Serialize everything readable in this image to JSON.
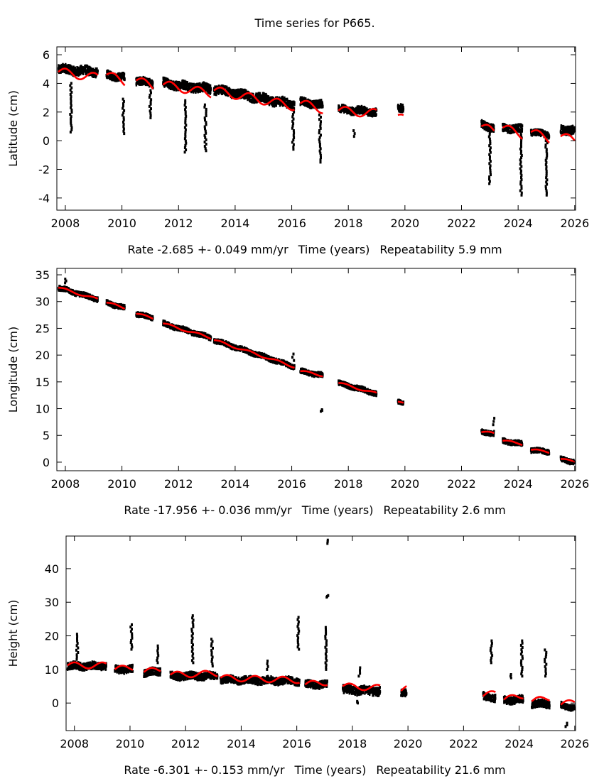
{
  "title": "Time series for P665.",
  "chart_data": [
    {
      "type": "scatter",
      "ylabel": "Latitude (cm)",
      "xlabel": "Time (years)",
      "rate": "Rate -2.685 +- 0.049 mm/yr",
      "repeatability": "Repeatability 5.9 mm",
      "xlim": [
        2007.7,
        2026.03
      ],
      "ylim": [
        -4.85,
        6.55
      ],
      "xticks": [
        2008,
        2010,
        2012,
        2014,
        2016,
        2018,
        2020,
        2022,
        2024,
        2026
      ],
      "yticks": [
        -4,
        -2,
        0,
        2,
        4,
        6
      ],
      "data_color": "#000000",
      "model_color": "#ff0000",
      "model_amplitude": 0.3,
      "segments": [
        [
          2007.75,
          2009.15,
          5.0,
          4.8,
          0.3
        ],
        [
          2009.45,
          2010.1,
          4.6,
          4.4,
          0.25
        ],
        [
          2010.5,
          2011.1,
          4.2,
          4.0,
          0.25
        ],
        [
          2011.45,
          2013.15,
          4.0,
          3.6,
          0.3
        ],
        [
          2013.25,
          2016.1,
          3.6,
          2.5,
          0.3
        ],
        [
          2016.3,
          2017.1,
          2.7,
          2.5,
          0.25
        ],
        [
          2017.65,
          2019.0,
          2.2,
          2.0,
          0.25
        ],
        [
          2019.75,
          2019.95,
          2.2,
          2.2,
          0.25
        ],
        [
          2022.7,
          2023.15,
          1.1,
          0.9,
          0.25
        ],
        [
          2023.45,
          2024.15,
          0.9,
          0.8,
          0.25
        ],
        [
          2024.45,
          2025.1,
          0.6,
          0.4,
          0.2
        ],
        [
          2025.5,
          2026.0,
          0.7,
          0.8,
          0.3
        ]
      ],
      "model": [
        [
          2007.75,
          2009.15,
          4.8,
          4.4
        ],
        [
          2009.45,
          2010.1,
          4.6,
          4.1
        ],
        [
          2010.5,
          2011.1,
          4.2,
          3.8
        ],
        [
          2011.45,
          2013.15,
          3.9,
          3.3
        ],
        [
          2013.25,
          2016.1,
          3.5,
          2.4
        ],
        [
          2016.3,
          2017.1,
          2.6,
          2.2
        ],
        [
          2017.65,
          2019.0,
          2.1,
          1.9
        ],
        [
          2019.75,
          2019.95,
          1.8,
          1.5
        ],
        [
          2022.7,
          2023.15,
          1.0,
          0.6
        ],
        [
          2023.45,
          2024.15,
          0.9,
          0.4
        ],
        [
          2024.45,
          2025.1,
          0.6,
          0.1
        ],
        [
          2025.5,
          2026.0,
          0.3,
          0.0
        ]
      ],
      "outliers": [
        [
          2008.2,
          0.6,
          4.0
        ],
        [
          2010.05,
          0.5,
          2.9
        ],
        [
          2011.0,
          1.6,
          3.5
        ],
        [
          2012.25,
          -0.8,
          2.8
        ],
        [
          2012.95,
          -0.7,
          2.5
        ],
        [
          2016.05,
          -0.6,
          2.0
        ],
        [
          2017.0,
          -1.5,
          1.8
        ],
        [
          2018.2,
          0.3,
          0.7
        ],
        [
          2023.0,
          -3.0,
          0.9
        ],
        [
          2024.1,
          -3.8,
          0.5
        ],
        [
          2025.0,
          -3.8,
          0.0
        ]
      ]
    },
    {
      "type": "scatter",
      "ylabel": "Longitude (cm)",
      "xlabel": "Time (years)",
      "rate": "Rate -17.956 +- 0.036 mm/yr",
      "repeatability": "Repeatability 2.6 mm",
      "xlim": [
        2007.7,
        2026.03
      ],
      "ylim": [
        -1.6,
        36.2
      ],
      "xticks": [
        2008,
        2010,
        2012,
        2014,
        2016,
        2018,
        2020,
        2022,
        2024,
        2026
      ],
      "yticks": [
        0,
        5,
        10,
        15,
        20,
        25,
        30,
        35
      ],
      "data_color": "#000000",
      "model_color": "#ff0000",
      "model_amplitude": 0.2,
      "segments": [
        [
          2007.75,
          2009.15,
          32.6,
          30.4,
          0.4
        ],
        [
          2009.45,
          2010.1,
          29.8,
          28.8,
          0.4
        ],
        [
          2010.5,
          2011.1,
          27.7,
          26.9,
          0.4
        ],
        [
          2011.45,
          2013.15,
          25.9,
          23.2,
          0.4
        ],
        [
          2013.25,
          2016.1,
          22.8,
          17.8,
          0.4
        ],
        [
          2016.3,
          2017.1,
          17.0,
          16.2,
          0.4
        ],
        [
          2017.65,
          2019.0,
          14.8,
          12.8,
          0.4
        ],
        [
          2019.75,
          2019.95,
          11.3,
          10.9,
          0.3
        ],
        [
          2022.7,
          2023.15,
          5.6,
          5.4,
          0.4
        ],
        [
          2023.45,
          2024.15,
          4.0,
          3.4,
          0.4
        ],
        [
          2024.45,
          2025.1,
          2.3,
          1.9,
          0.4
        ],
        [
          2025.5,
          2026.0,
          0.6,
          0.0,
          0.4
        ]
      ],
      "model": [
        [
          2007.75,
          2009.15,
          32.6,
          30.4
        ],
        [
          2009.45,
          2010.1,
          29.8,
          28.8
        ],
        [
          2010.5,
          2011.1,
          27.7,
          26.9
        ],
        [
          2011.45,
          2013.15,
          25.9,
          23.2
        ],
        [
          2013.25,
          2016.1,
          22.8,
          17.8
        ],
        [
          2016.3,
          2017.1,
          17.0,
          16.2
        ],
        [
          2017.65,
          2019.0,
          14.8,
          12.8
        ],
        [
          2019.75,
          2019.95,
          11.3,
          10.9
        ],
        [
          2022.7,
          2023.15,
          5.6,
          5.4
        ],
        [
          2023.45,
          2024.15,
          4.0,
          3.4
        ],
        [
          2024.45,
          2025.1,
          2.3,
          1.9
        ],
        [
          2025.5,
          2026.0,
          0.6,
          0.0
        ]
      ],
      "outliers": [
        [
          2008.0,
          33.5,
          34.2
        ],
        [
          2016.05,
          19.0,
          20.2
        ],
        [
          2017.05,
          9.5,
          9.8
        ],
        [
          2023.15,
          7.0,
          8.2
        ]
      ]
    },
    {
      "type": "scatter",
      "ylabel": "Height (cm)",
      "xlabel": "Time (years)",
      "rate": "Rate -6.301 +- 0.153 mm/yr",
      "repeatability": "Repeatability 21.6 mm",
      "xlim": [
        2007.7,
        2026.03
      ],
      "ylim": [
        -8.2,
        49.7
      ],
      "xticks": [
        2008,
        2010,
        2012,
        2014,
        2016,
        2018,
        2020,
        2022,
        2024,
        2026
      ],
      "yticks": [
        0,
        10,
        20,
        30,
        40
      ],
      "data_color": "#000000",
      "model_color": "#ff0000",
      "model_amplitude": 0.9,
      "segments": [
        [
          2007.75,
          2009.15,
          11,
          11,
          1.0
        ],
        [
          2009.45,
          2010.1,
          10,
          10,
          1.0
        ],
        [
          2010.5,
          2011.1,
          9,
          9.5,
          1.0
        ],
        [
          2011.45,
          2013.15,
          8,
          8,
          1.0
        ],
        [
          2013.25,
          2016.1,
          7,
          6.5,
          1.0
        ],
        [
          2016.3,
          2017.1,
          5.5,
          5.5,
          1.0
        ],
        [
          2017.65,
          2019.0,
          4,
          3.5,
          1.2
        ],
        [
          2019.75,
          2019.95,
          2.8,
          2.8,
          1.0
        ],
        [
          2022.7,
          2023.15,
          2,
          1.5,
          1.0
        ],
        [
          2023.45,
          2024.15,
          0.8,
          1.0,
          1.0
        ],
        [
          2024.45,
          2025.1,
          -0.2,
          -0.3,
          1.0
        ],
        [
          2025.5,
          2026.0,
          -0.7,
          -1.5,
          0.8
        ]
      ],
      "model": [
        [
          2007.75,
          2009.15,
          11.2,
          11.2
        ],
        [
          2009.45,
          2010.1,
          10.0,
          10.6
        ],
        [
          2010.5,
          2011.1,
          9.2,
          10.0
        ],
        [
          2011.45,
          2013.15,
          8.4,
          8.8
        ],
        [
          2013.25,
          2016.1,
          7.5,
          6.8
        ],
        [
          2016.3,
          2017.1,
          5.5,
          6.2
        ],
        [
          2017.65,
          2019.0,
          5.0,
          4.5
        ],
        [
          2019.75,
          2019.95,
          3.6,
          4.2
        ],
        [
          2022.7,
          2023.15,
          2.0,
          3.0
        ],
        [
          2023.45,
          2024.15,
          1.0,
          2.2
        ],
        [
          2024.45,
          2025.1,
          0.5,
          1.5
        ],
        [
          2025.5,
          2026.0,
          -0.5,
          0.3
        ]
      ],
      "outliers": [
        [
          2008.1,
          13,
          20.5
        ],
        [
          2010.05,
          16,
          23.3
        ],
        [
          2011.0,
          12,
          17
        ],
        [
          2012.25,
          12,
          26
        ],
        [
          2012.95,
          11,
          19
        ],
        [
          2014.95,
          10,
          12.5
        ],
        [
          2016.05,
          16,
          25.5
        ],
        [
          2017.05,
          10,
          22.5
        ],
        [
          2017.1,
          31.5,
          32
        ],
        [
          2017.1,
          47.5,
          48.5
        ],
        [
          2018.25,
          8,
          10.5
        ],
        [
          2018.2,
          0,
          0.5
        ],
        [
          2023.0,
          12,
          18.5
        ],
        [
          2023.7,
          7.5,
          8.5
        ],
        [
          2024.1,
          8,
          18.5
        ],
        [
          2024.95,
          8,
          15.8
        ],
        [
          2025.7,
          -7,
          -6
        ]
      ]
    }
  ]
}
